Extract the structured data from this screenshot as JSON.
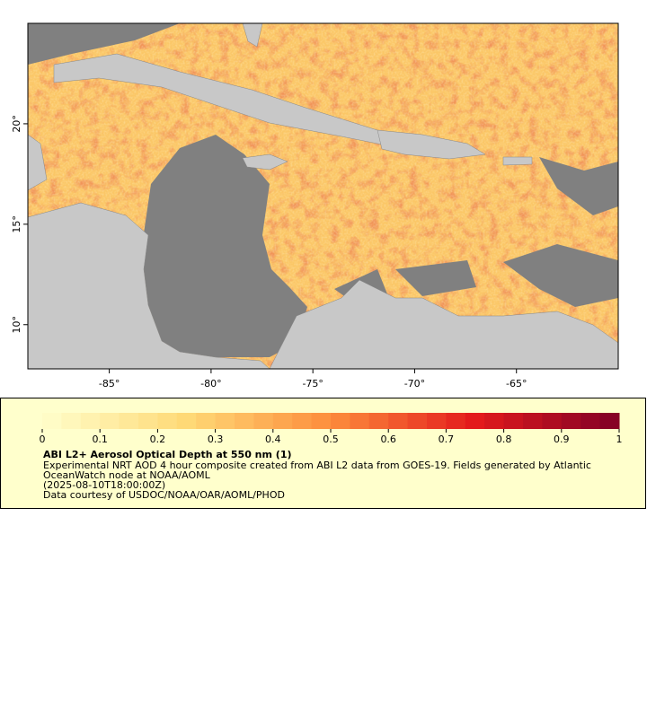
{
  "map": {
    "lon_range": [
      -89,
      -60
    ],
    "lat_range": [
      7.8,
      25
    ],
    "lon_ticks": [
      {
        "value": -85,
        "label": "-85°"
      },
      {
        "value": -80,
        "label": "-80°"
      },
      {
        "value": -75,
        "label": "-75°"
      },
      {
        "value": -70,
        "label": "-70°"
      },
      {
        "value": -65,
        "label": "-65°"
      }
    ],
    "lat_ticks": [
      {
        "value": 10,
        "label": "10°"
      },
      {
        "value": 15,
        "label": "15°"
      },
      {
        "value": 20,
        "label": "20°"
      }
    ]
  },
  "legend": {
    "colorbar": {
      "range": [
        0,
        1
      ],
      "ticks": [
        0,
        0.1,
        0.2,
        0.3,
        0.4,
        0.5,
        0.6,
        0.7,
        0.8,
        0.9,
        1
      ]
    },
    "title": "ABI L2+ Aerosol Optical Depth at 550 nm (1)",
    "lines": [
      "Experimental NRT AOD 4 hour composite created from ABI L2 data from GOES-19. Fields generated by Atlantic",
      "OceanWatch node at NOAA/AOML",
      "(2025-08-10T18:00:00Z)",
      "Data courtesy of USDOC/NOAA/OAR/AOML/PHOD"
    ]
  }
}
